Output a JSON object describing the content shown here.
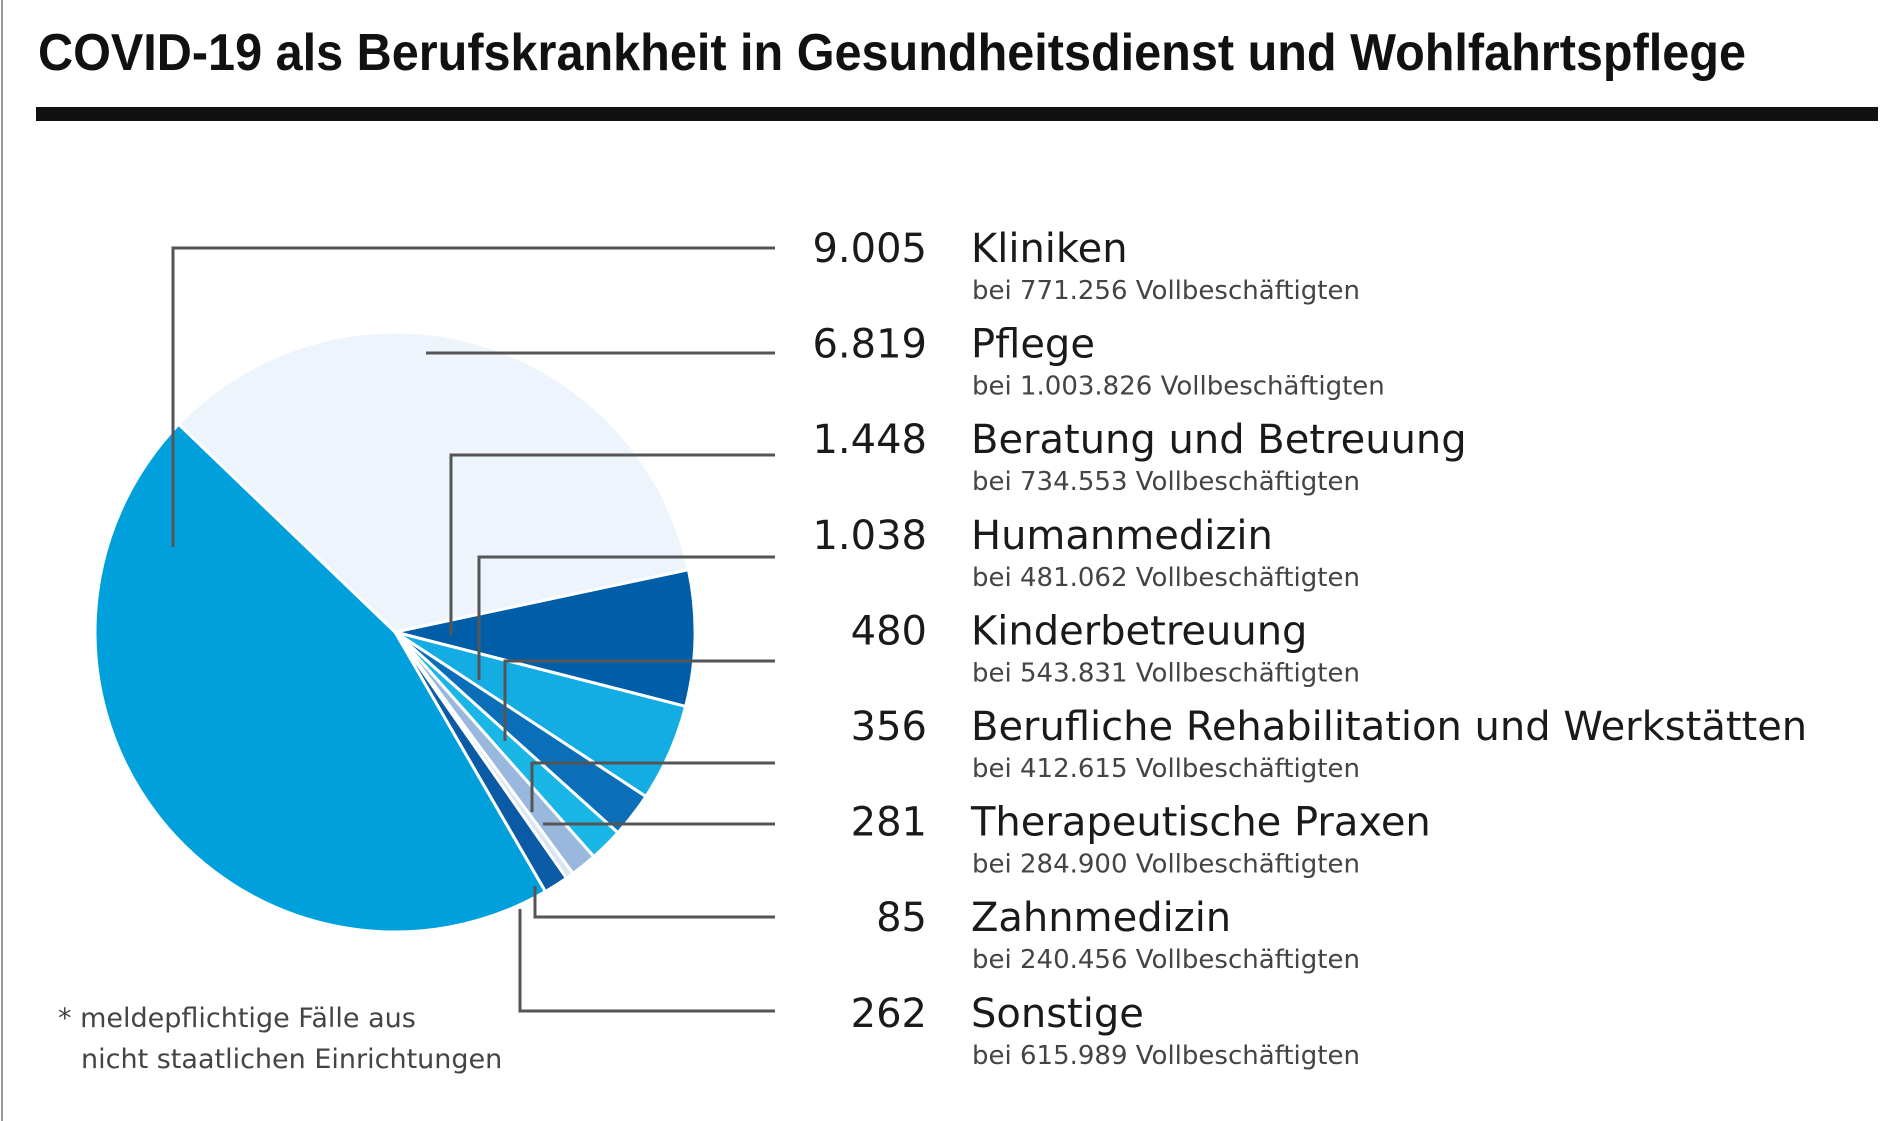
{
  "chart_data": {
    "type": "pie",
    "title": "COVID-19 als Berufskrankheit in Gesundheitsdienst und Wohlfahrtspflege",
    "slices": [
      {
        "label": "Kliniken",
        "value": 9005,
        "value_text": "9.005",
        "sub": "bei 771.256 Vollbeschäftigten",
        "color": "#00a0dc"
      },
      {
        "label": "Pflege",
        "value": 6819,
        "value_text": "6.819",
        "sub": "bei 1.003.826 Vollbeschäftigten",
        "color": "#eef4fb"
      },
      {
        "label": "Beratung und Betreuung",
        "value": 1448,
        "value_text": "1.448",
        "sub": "bei 734.553 Vollbeschäftigten",
        "color": "#005ea8"
      },
      {
        "label": "Humanmedizin",
        "value": 1038,
        "value_text": "1.038",
        "sub": "bei 481.062 Vollbeschäftigten",
        "color": "#14ade3"
      },
      {
        "label": "Kinderbetreuung",
        "value": 480,
        "value_text": "480",
        "sub": "bei 543.831 Vollbeschäftigten",
        "color": "#0a6fb8"
      },
      {
        "label": "Berufliche Rehabilitation und Werkstätten",
        "value": 356,
        "value_text": "356",
        "sub": "bei 412.615 Vollbeschäftigten",
        "color": "#1ab7e6"
      },
      {
        "label": "Therapeutische Praxen",
        "value": 281,
        "value_text": "281",
        "sub": "bei 284.900 Vollbeschäftigten",
        "color": "#9ab8de"
      },
      {
        "label": "Zahnmedizin",
        "value": 85,
        "value_text": "85",
        "sub": "bei 240.456 Vollbeschäftigten",
        "color": "#d8e6f4"
      },
      {
        "label": "Sonstige",
        "value": 262,
        "value_text": "262",
        "sub": "bei 615.989 Vollbeschäftigten",
        "color": "#0a5aa6"
      }
    ],
    "footnote": [
      "* meldepflichtige Fälle aus",
      "nicht staatlichen Einrichtungen"
    ]
  }
}
